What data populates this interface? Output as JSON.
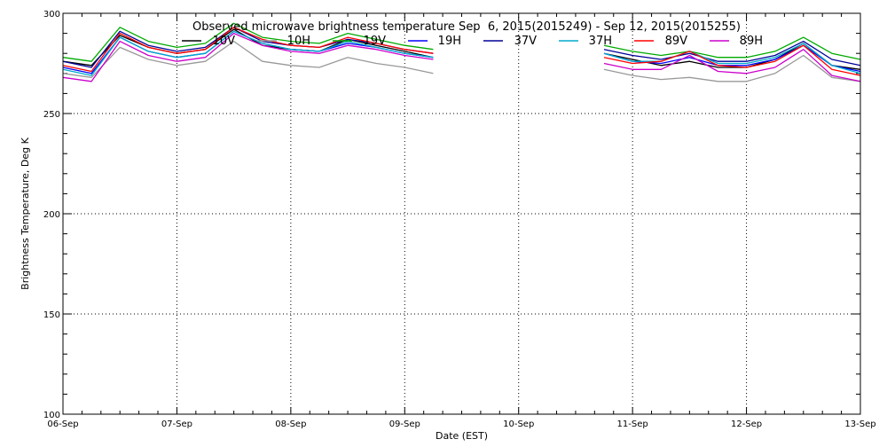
{
  "chart_data": {
    "type": "line",
    "title": "Observed microwave brightness temperature Sep  6, 2015(2015249) - Sep 12, 2015(2015255)",
    "xlabel": "Date (EST)",
    "ylabel": "Brightness Temperature, Deg K",
    "ylim": [
      100,
      300
    ],
    "xlim": [
      "2015-09-06",
      "2015-09-13"
    ],
    "x_ticks": [
      "06-Sep",
      "07-Sep",
      "08-Sep",
      "09-Sep",
      "10-Sep",
      "11-Sep",
      "12-Sep",
      "13-Sep"
    ],
    "y_ticks": [
      100,
      150,
      200,
      250,
      300
    ],
    "grid": true,
    "legend_position": "top",
    "x": [
      "2015-09-06 00:00",
      "2015-09-06 06:00",
      "2015-09-06 12:00",
      "2015-09-06 18:00",
      "2015-09-07 00:00",
      "2015-09-07 06:00",
      "2015-09-07 12:00",
      "2015-09-07 18:00",
      "2015-09-08 00:00",
      "2015-09-08 06:00",
      "2015-09-08 12:00",
      "2015-09-08 18:00",
      "2015-09-09 00:00",
      "2015-09-09 06:00",
      "2015-09-10 18:00",
      "2015-09-11 00:00",
      "2015-09-11 06:00",
      "2015-09-11 12:00",
      "2015-09-11 18:00",
      "2015-09-12 00:00",
      "2015-09-12 06:00",
      "2015-09-12 12:00",
      "2015-09-12 18:00",
      "2015-09-13 00:00"
    ],
    "series": [
      {
        "name": "10V",
        "color": "#000000",
        "values": [
          276,
          274,
          289,
          283,
          280,
          282,
          292,
          284,
          282,
          281,
          287,
          284,
          281,
          278,
          280,
          277,
          274,
          276,
          273,
          273,
          277,
          285,
          274,
          272
        ]
      },
      {
        "name": "10H",
        "color": "#999999",
        "values": [
          270,
          268,
          283,
          277,
          274,
          276,
          286,
          276,
          274,
          273,
          278,
          275,
          273,
          270,
          272,
          269,
          267,
          268,
          266,
          266,
          270,
          279,
          268,
          266
        ]
      },
      {
        "name": "19V",
        "color": "#00aa00",
        "values": [
          278,
          276,
          293,
          286,
          283,
          285,
          295,
          288,
          286,
          285,
          290,
          287,
          284,
          282,
          284,
          281,
          279,
          281,
          278,
          278,
          281,
          288,
          280,
          277
        ]
      },
      {
        "name": "19H",
        "color": "#0000ff",
        "values": [
          273,
          270,
          288,
          281,
          278,
          280,
          291,
          285,
          282,
          281,
          285,
          283,
          280,
          278,
          280,
          276,
          275,
          278,
          274,
          274,
          277,
          284,
          274,
          271
        ]
      },
      {
        "name": "37V",
        "color": "#000099",
        "values": [
          276,
          273,
          291,
          284,
          281,
          283,
          293,
          286,
          284,
          283,
          287,
          285,
          282,
          280,
          282,
          279,
          277,
          280,
          276,
          276,
          279,
          286,
          277,
          274
        ]
      },
      {
        "name": "37H",
        "color": "#00aacc",
        "values": [
          272,
          269,
          288,
          281,
          278,
          280,
          291,
          285,
          282,
          281,
          286,
          283,
          280,
          278,
          280,
          276,
          276,
          281,
          275,
          275,
          278,
          285,
          274,
          270
        ]
      },
      {
        "name": "89V",
        "color": "#ff0000",
        "values": [
          274,
          271,
          290,
          283,
          280,
          282,
          293,
          287,
          284,
          283,
          288,
          285,
          282,
          280,
          278,
          275,
          276,
          281,
          274,
          273,
          276,
          284,
          272,
          269
        ]
      },
      {
        "name": "89H",
        "color": "#cc00cc",
        "values": [
          268,
          266,
          286,
          279,
          276,
          278,
          290,
          284,
          281,
          280,
          284,
          282,
          279,
          277,
          275,
          272,
          272,
          279,
          271,
          270,
          273,
          282,
          269,
          266
        ]
      }
    ]
  }
}
